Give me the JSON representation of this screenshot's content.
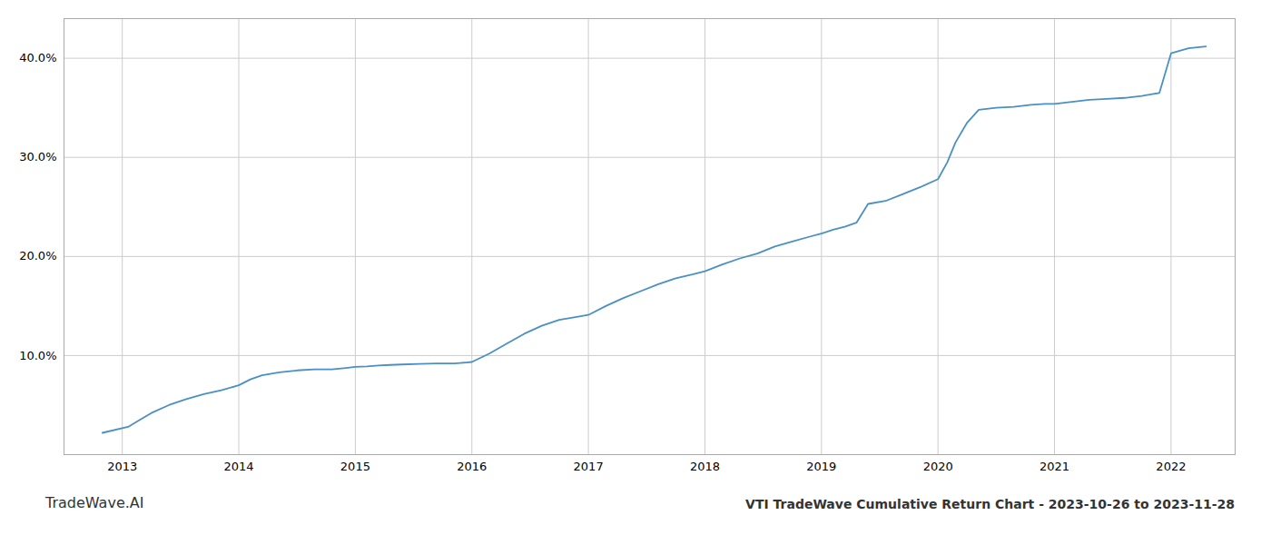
{
  "chart_data": {
    "type": "line",
    "title": "VTI TradeWave Cumulative Return Chart - 2023-10-26 to 2023-11-28",
    "annotations": [
      "TradeWave.AI"
    ],
    "color": "#4a90c4",
    "grid": true,
    "x": [
      2012.83,
      2013.05,
      2013.15,
      2013.25,
      2013.4,
      2013.55,
      2013.7,
      2013.85,
      2014.0,
      2014.1,
      2014.2,
      2014.35,
      2014.5,
      2014.65,
      2014.8,
      2014.92,
      2015.0,
      2015.1,
      2015.2,
      2015.3,
      2015.4,
      2015.55,
      2015.7,
      2015.85,
      2015.95,
      2016.0,
      2016.15,
      2016.3,
      2016.45,
      2016.6,
      2016.75,
      2016.9,
      2017.0,
      2017.15,
      2017.3,
      2017.45,
      2017.6,
      2017.75,
      2017.9,
      2018.0,
      2018.15,
      2018.3,
      2018.45,
      2018.6,
      2018.75,
      2018.9,
      2019.0,
      2019.1,
      2019.2,
      2019.3,
      2019.4,
      2019.55,
      2019.7,
      2019.85,
      2020.0,
      2020.08,
      2020.15,
      2020.25,
      2020.35,
      2020.5,
      2020.65,
      2020.8,
      2020.92,
      2021.0,
      2021.15,
      2021.3,
      2021.45,
      2021.6,
      2021.75,
      2021.9,
      2022.0,
      2022.15,
      2022.3
    ],
    "values": [
      2.2,
      2.8,
      3.5,
      4.2,
      5.0,
      5.6,
      6.1,
      6.5,
      7.0,
      7.6,
      8.0,
      8.3,
      8.5,
      8.6,
      8.6,
      8.75,
      8.85,
      8.9,
      9.0,
      9.05,
      9.1,
      9.15,
      9.2,
      9.2,
      9.3,
      9.35,
      10.2,
      11.2,
      12.2,
      13.0,
      13.6,
      13.9,
      14.1,
      15.0,
      15.8,
      16.5,
      17.2,
      17.8,
      18.2,
      18.5,
      19.2,
      19.8,
      20.3,
      21.0,
      21.5,
      22.0,
      22.3,
      22.7,
      23.0,
      23.4,
      25.3,
      25.6,
      26.3,
      27.0,
      27.8,
      29.5,
      31.5,
      33.5,
      34.8,
      35.0,
      35.1,
      35.3,
      35.4,
      35.4,
      35.6,
      35.8,
      35.9,
      36.0,
      36.2,
      36.5,
      40.5,
      41.0,
      41.2
    ],
    "xlim": [
      2012.5,
      2022.55
    ],
    "xticks": [
      2013,
      2014,
      2015,
      2016,
      2017,
      2018,
      2019,
      2020,
      2021,
      2022
    ],
    "ylim": [
      0,
      44
    ],
    "yticks": [
      {
        "value": 10.0,
        "label": "10.0%"
      },
      {
        "value": 20.0,
        "label": "20.0%"
      },
      {
        "value": 30.0,
        "label": "30.0%"
      },
      {
        "value": 40.0,
        "label": "40.0%"
      }
    ]
  }
}
